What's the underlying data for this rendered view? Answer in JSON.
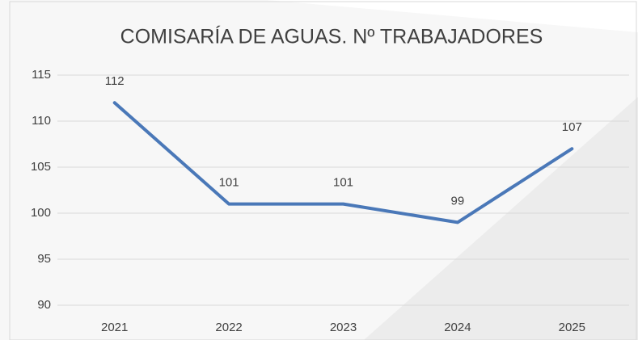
{
  "chart_data": {
    "type": "line",
    "title": "COMISARÍA DE AGUAS. Nº TRABAJADORES",
    "categories": [
      "2021",
      "2022",
      "2023",
      "2024",
      "2025"
    ],
    "values": [
      112,
      101,
      101,
      99,
      107
    ],
    "color": "#4a78b8",
    "ylim": [
      90,
      115
    ],
    "yticks": [
      90,
      95,
      100,
      105,
      110,
      115
    ],
    "grid": true
  }
}
